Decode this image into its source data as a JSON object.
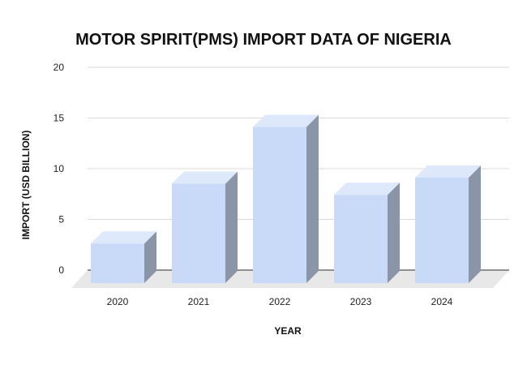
{
  "colors": {
    "bar_front": "#c9daf8",
    "bar_side": "#8a96a8",
    "bar_top": "#dde8fb",
    "floor": "#e8e8e8",
    "grid": "#d9d9d9",
    "baseline": "#555555"
  },
  "chart_data": {
    "type": "bar",
    "title": "MOTOR SPIRIT(PMS) IMPORT DATA OF NIGERIA",
    "xlabel": "YEAR",
    "ylabel": "IMPORT (USD BILLION)",
    "categories": [
      "2020",
      "2021",
      "2022",
      "2023",
      "2024"
    ],
    "series": [
      {
        "values": [
          3.9,
          9.8,
          15.4,
          8.7,
          10.4
        ]
      }
    ],
    "ylim": [
      0,
      20
    ],
    "yticks": [
      "0",
      "5",
      "10",
      "15",
      "20"
    ],
    "grid": true,
    "legend": "none",
    "style": "3d"
  }
}
